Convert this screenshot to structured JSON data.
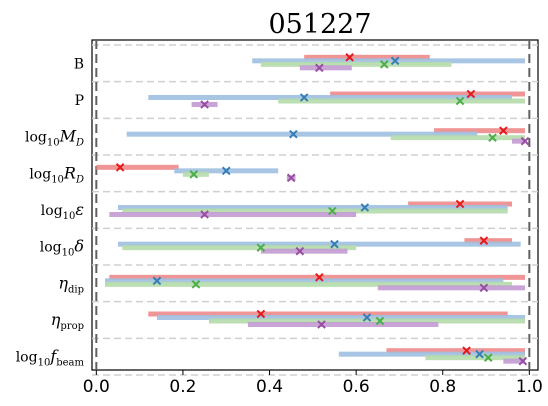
{
  "chart_data": {
    "type": "interval",
    "title": "051227",
    "xlim": [
      -0.01,
      1.02
    ],
    "xticks": [
      "0.0",
      "0.2",
      "0.4",
      "0.6",
      "0.8",
      "1.0"
    ],
    "xtick_values": [
      0.0,
      0.2,
      0.4,
      0.6,
      0.8,
      1.0
    ],
    "reference_lines": [
      0.0,
      1.0
    ],
    "series_colors": [
      "#ee8a8a",
      "#9ec0e0",
      "#b4dcaa",
      "#c39bd3"
    ],
    "marker_colors": [
      "#e41a1c",
      "#377eb8",
      "#4daf4a",
      "#984ea3"
    ],
    "parameters": [
      {
        "label": {
          "main": "B",
          "sub": "",
          "sym": ""
        },
        "series": [
          {
            "lo": 0.48,
            "hi": 0.77,
            "x": 0.585
          },
          {
            "lo": 0.36,
            "hi": 0.99,
            "x": 0.69
          },
          {
            "lo": 0.38,
            "hi": 0.82,
            "x": 0.665
          },
          {
            "lo": 0.47,
            "hi": 0.59,
            "x": 0.515
          }
        ]
      },
      {
        "label": {
          "main": "P",
          "sub": "",
          "sym": ""
        },
        "series": [
          {
            "lo": 0.54,
            "hi": 0.99,
            "x": 0.865
          },
          {
            "lo": 0.12,
            "hi": 0.96,
            "x": 0.48
          },
          {
            "lo": 0.42,
            "hi": 0.99,
            "x": 0.84
          },
          {
            "lo": 0.22,
            "hi": 0.28,
            "x": 0.25
          }
        ]
      },
      {
        "label": {
          "main": "log",
          "sub": "10",
          "sym": "M",
          "symsub": "D"
        },
        "series": [
          {
            "lo": 0.78,
            "hi": 0.99,
            "x": 0.94
          },
          {
            "lo": 0.07,
            "hi": 0.88,
            "x": 0.455
          },
          {
            "lo": 0.68,
            "hi": 0.99,
            "x": 0.915
          },
          {
            "lo": 0.96,
            "hi": 0.99,
            "x": 0.99
          }
        ]
      },
      {
        "label": {
          "main": "log",
          "sub": "10",
          "sym": "R",
          "symsub": "D"
        },
        "series": [
          {
            "lo": 0.0,
            "hi": 0.19,
            "x": 0.055
          },
          {
            "lo": 0.18,
            "hi": 0.42,
            "x": 0.3
          },
          {
            "lo": 0.2,
            "hi": 0.26,
            "x": 0.225
          },
          {
            "lo": 0.44,
            "hi": 0.46,
            "x": 0.45
          }
        ]
      },
      {
        "label": {
          "main": "log",
          "sub": "10",
          "sym": "ε",
          "symsub": ""
        },
        "series": [
          {
            "lo": 0.72,
            "hi": 0.96,
            "x": 0.84
          },
          {
            "lo": 0.05,
            "hi": 0.95,
            "x": 0.62
          },
          {
            "lo": 0.06,
            "hi": 0.95,
            "x": 0.545
          },
          {
            "lo": 0.03,
            "hi": 0.6,
            "x": 0.25
          }
        ]
      },
      {
        "label": {
          "main": "log",
          "sub": "10",
          "sym": "δ",
          "symsub": ""
        },
        "series": [
          {
            "lo": 0.85,
            "hi": 0.96,
            "x": 0.895
          },
          {
            "lo": 0.05,
            "hi": 0.98,
            "x": 0.55
          },
          {
            "lo": 0.06,
            "hi": 0.6,
            "x": 0.38
          },
          {
            "lo": 0.38,
            "hi": 0.58,
            "x": 0.47
          }
        ]
      },
      {
        "label": {
          "main": "",
          "sub": "",
          "sym": "η",
          "symsub": "dip"
        },
        "series": [
          {
            "lo": 0.03,
            "hi": 0.99,
            "x": 0.515
          },
          {
            "lo": 0.02,
            "hi": 0.94,
            "x": 0.14
          },
          {
            "lo": 0.02,
            "hi": 0.96,
            "x": 0.23
          },
          {
            "lo": 0.65,
            "hi": 0.99,
            "x": 0.895
          }
        ]
      },
      {
        "label": {
          "main": "",
          "sub": "",
          "sym": "η",
          "symsub": "prop"
        },
        "series": [
          {
            "lo": 0.12,
            "hi": 0.95,
            "x": 0.38
          },
          {
            "lo": 0.14,
            "hi": 0.99,
            "x": 0.625
          },
          {
            "lo": 0.26,
            "hi": 0.99,
            "x": 0.655
          },
          {
            "lo": 0.35,
            "hi": 0.79,
            "x": 0.52
          }
        ]
      },
      {
        "label": {
          "main": "log",
          "sub": "10",
          "sym": "f",
          "symsub": "beam"
        },
        "series": [
          {
            "lo": 0.67,
            "hi": 0.99,
            "x": 0.855
          },
          {
            "lo": 0.56,
            "hi": 0.99,
            "x": 0.885
          },
          {
            "lo": 0.76,
            "hi": 0.99,
            "x": 0.905
          },
          {
            "lo": 0.94,
            "hi": 0.99,
            "x": 0.985
          }
        ]
      }
    ]
  }
}
